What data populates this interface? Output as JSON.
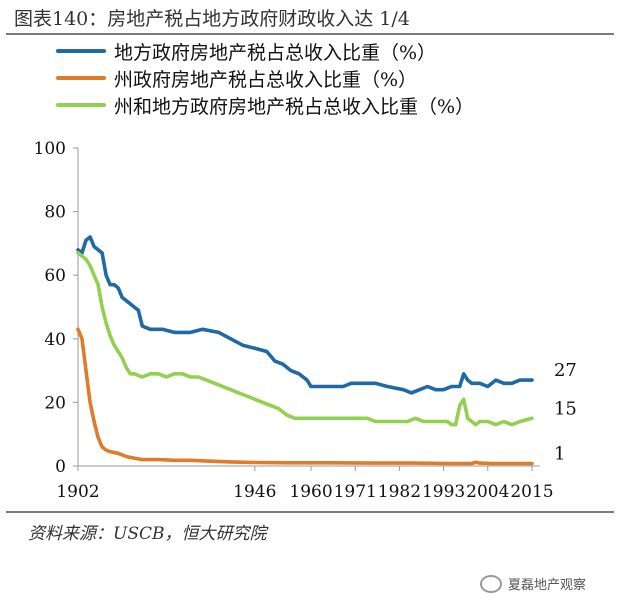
{
  "title": "图表140：房地产税占地方政府财政收入达 1/4",
  "source": "资料来源：USCB，恒大研究院",
  "watermark": {
    "icon": "wechat-icon",
    "text": "夏磊地产观察"
  },
  "colors": {
    "blue": "#1f6aa5",
    "orange": "#e07b2a",
    "green": "#92d050"
  },
  "chart_data": {
    "type": "line",
    "title": "房地产税占地方政府财政收入达 1/4",
    "xlabel": "",
    "ylabel": "",
    "xlim": [
      1902,
      2016
    ],
    "ylim": [
      0,
      100
    ],
    "x_ticks": [
      1902,
      1946,
      1960,
      1971,
      1982,
      1993,
      2004,
      2015
    ],
    "y_ticks": [
      0,
      20,
      40,
      60,
      80,
      100
    ],
    "legend_position": "top",
    "series": [
      {
        "name": "地方政府房地产税占总收入比重（%）",
        "color": "#1f6aa5",
        "end_label": "27",
        "points": [
          [
            1902,
            68
          ],
          [
            1903,
            67
          ],
          [
            1904,
            71
          ],
          [
            1905,
            72
          ],
          [
            1906,
            69
          ],
          [
            1908,
            67
          ],
          [
            1909,
            60
          ],
          [
            1910,
            57
          ],
          [
            1911,
            57
          ],
          [
            1912,
            56
          ],
          [
            1913,
            53
          ],
          [
            1914,
            52
          ],
          [
            1916,
            50
          ],
          [
            1917,
            49
          ],
          [
            1918,
            44
          ],
          [
            1920,
            43
          ],
          [
            1923,
            43
          ],
          [
            1926,
            42
          ],
          [
            1930,
            42
          ],
          [
            1933,
            43
          ],
          [
            1937,
            42
          ],
          [
            1940,
            40
          ],
          [
            1943,
            38
          ],
          [
            1946,
            37
          ],
          [
            1949,
            36
          ],
          [
            1951,
            33
          ],
          [
            1953,
            32
          ],
          [
            1955,
            30
          ],
          [
            1957,
            29
          ],
          [
            1959,
            27
          ],
          [
            1960,
            25
          ],
          [
            1962,
            25
          ],
          [
            1965,
            25
          ],
          [
            1968,
            25
          ],
          [
            1970,
            26
          ],
          [
            1973,
            26
          ],
          [
            1976,
            26
          ],
          [
            1979,
            25
          ],
          [
            1983,
            24
          ],
          [
            1985,
            23
          ],
          [
            1987,
            24
          ],
          [
            1989,
            25
          ],
          [
            1991,
            24
          ],
          [
            1993,
            24
          ],
          [
            1995,
            25
          ],
          [
            1997,
            25
          ],
          [
            1998,
            29
          ],
          [
            1999,
            27
          ],
          [
            2000,
            26
          ],
          [
            2002,
            26
          ],
          [
            2004,
            25
          ],
          [
            2006,
            27
          ],
          [
            2008,
            26
          ],
          [
            2010,
            26
          ],
          [
            2012,
            27
          ],
          [
            2015,
            27
          ]
        ]
      },
      {
        "name": "州政府房地产税占总收入比重（%）",
        "color": "#e07b2a",
        "end_label": "1",
        "points": [
          [
            1902,
            43
          ],
          [
            1903,
            40
          ],
          [
            1904,
            30
          ],
          [
            1905,
            20
          ],
          [
            1906,
            14
          ],
          [
            1907,
            9
          ],
          [
            1908,
            6
          ],
          [
            1909,
            5
          ],
          [
            1910,
            4.5
          ],
          [
            1912,
            4
          ],
          [
            1914,
            3
          ],
          [
            1916,
            2.5
          ],
          [
            1918,
            2
          ],
          [
            1922,
            2
          ],
          [
            1926,
            1.8
          ],
          [
            1930,
            1.8
          ],
          [
            1935,
            1.5
          ],
          [
            1940,
            1.3
          ],
          [
            1946,
            1.1
          ],
          [
            1955,
            1
          ],
          [
            1965,
            1
          ],
          [
            1975,
            0.9
          ],
          [
            1985,
            0.9
          ],
          [
            1995,
            0.8
          ],
          [
            2000,
            0.8
          ],
          [
            2001,
            1.2
          ],
          [
            2002,
            0.9
          ],
          [
            2005,
            0.8
          ],
          [
            2010,
            0.8
          ],
          [
            2015,
            0.8
          ]
        ]
      },
      {
        "name": "州和地方政府房地产税占总收入比重（%）",
        "color": "#92d050",
        "end_label": "15",
        "points": [
          [
            1902,
            67
          ],
          [
            1903,
            66
          ],
          [
            1904,
            65
          ],
          [
            1905,
            63
          ],
          [
            1906,
            60
          ],
          [
            1907,
            57
          ],
          [
            1908,
            50
          ],
          [
            1909,
            45
          ],
          [
            1910,
            41
          ],
          [
            1911,
            38
          ],
          [
            1912,
            36
          ],
          [
            1913,
            34
          ],
          [
            1914,
            31
          ],
          [
            1915,
            29
          ],
          [
            1916,
            29
          ],
          [
            1918,
            28
          ],
          [
            1920,
            29
          ],
          [
            1922,
            29
          ],
          [
            1924,
            28
          ],
          [
            1926,
            29
          ],
          [
            1928,
            29
          ],
          [
            1930,
            28
          ],
          [
            1932,
            28
          ],
          [
            1934,
            27
          ],
          [
            1936,
            26
          ],
          [
            1938,
            25
          ],
          [
            1940,
            24
          ],
          [
            1942,
            23
          ],
          [
            1944,
            22
          ],
          [
            1946,
            21
          ],
          [
            1948,
            20
          ],
          [
            1950,
            19
          ],
          [
            1952,
            18
          ],
          [
            1954,
            16
          ],
          [
            1956,
            15
          ],
          [
            1958,
            15
          ],
          [
            1960,
            15
          ],
          [
            1962,
            15
          ],
          [
            1965,
            15
          ],
          [
            1967,
            15
          ],
          [
            1970,
            15
          ],
          [
            1972,
            15
          ],
          [
            1974,
            15
          ],
          [
            1976,
            14
          ],
          [
            1978,
            14
          ],
          [
            1980,
            14
          ],
          [
            1982,
            14
          ],
          [
            1984,
            14
          ],
          [
            1986,
            15
          ],
          [
            1988,
            14
          ],
          [
            1990,
            14
          ],
          [
            1992,
            14
          ],
          [
            1994,
            14
          ],
          [
            1995,
            13
          ],
          [
            1996,
            13
          ],
          [
            1997,
            19
          ],
          [
            1998,
            21
          ],
          [
            1999,
            15
          ],
          [
            2000,
            14
          ],
          [
            2001,
            13
          ],
          [
            2002,
            14
          ],
          [
            2003,
            14
          ],
          [
            2004,
            14
          ],
          [
            2006,
            13
          ],
          [
            2008,
            14
          ],
          [
            2010,
            13
          ],
          [
            2012,
            14
          ],
          [
            2015,
            15
          ]
        ]
      }
    ]
  }
}
